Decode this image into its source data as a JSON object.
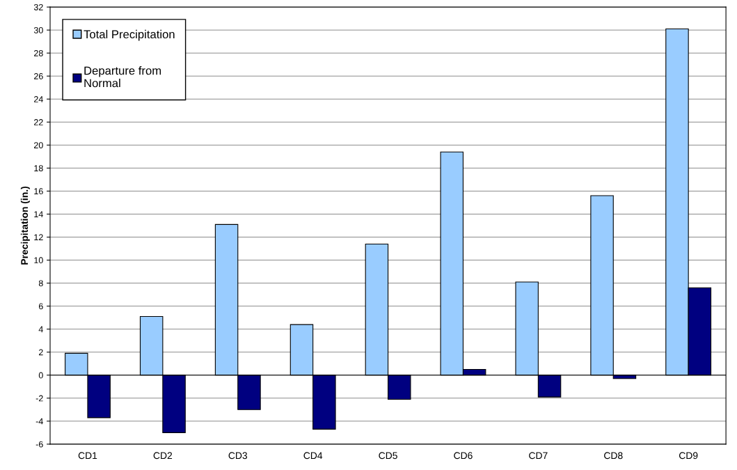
{
  "chart_data": {
    "type": "bar",
    "ylabel": "Precipitation (in.)",
    "categories": [
      "CD1",
      "CD2",
      "CD3",
      "CD4",
      "CD5",
      "CD6",
      "CD7",
      "CD8",
      "CD9"
    ],
    "series": [
      {
        "name": "Total Precipitation",
        "color": "#99ccff",
        "values": [
          1.9,
          5.1,
          13.1,
          4.4,
          11.4,
          19.4,
          8.1,
          15.6,
          30.1
        ]
      },
      {
        "name": "Departure from\nNormal",
        "color": "#000080",
        "values": [
          -3.7,
          -5.0,
          -3.0,
          -4.7,
          -2.1,
          0.5,
          -1.9,
          -0.3,
          7.6
        ]
      }
    ],
    "ylim": [
      -6,
      32
    ],
    "yticks": [
      -6,
      -4,
      -2,
      0,
      2,
      4,
      6,
      8,
      10,
      12,
      14,
      16,
      18,
      20,
      22,
      24,
      26,
      28,
      30,
      32
    ],
    "grid": "y",
    "legend": "top left"
  }
}
